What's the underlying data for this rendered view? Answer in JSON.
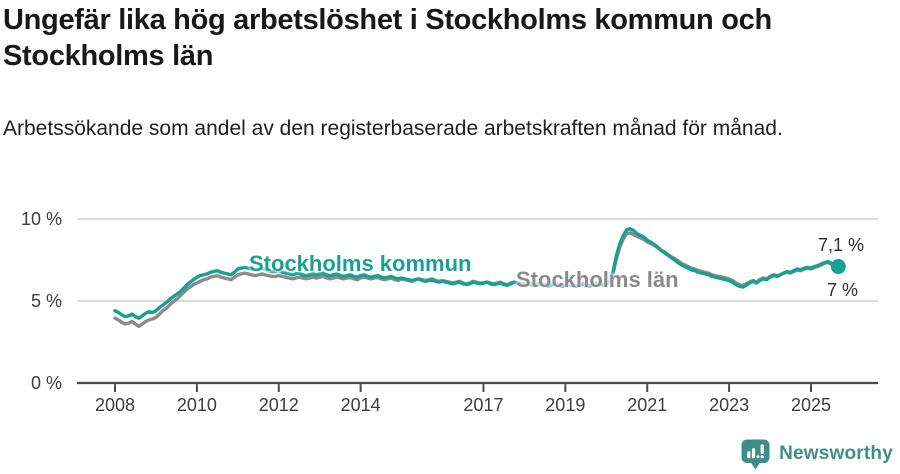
{
  "title": "Ungefär lika hög arbetslöshet i Stockholms kommun och Stockholms län",
  "subtitle": "Arbetssökande som andel av den registerbaserade arbetskraften månad för månad.",
  "footer": {
    "brand": "Newsworthy",
    "icon": "newsworthy-speech-bubble-bar-chart-icon"
  },
  "colors": {
    "kommun": "#18A094",
    "lan": "#8B8B8B",
    "grid": "#DBDBDB",
    "axis": "#4C4C4C",
    "title_text": "#181818",
    "tick_text": "#3D3D3D",
    "logo": "#3E8D8B",
    "background": "#FFFFFF"
  },
  "chart_data": {
    "type": "line",
    "title": "Ungefär lika hög arbetslöshet i Stockholms kommun och Stockholms län",
    "subtitle": "Arbetssökande som andel av den registerbaserade arbetskraften månad för månad.",
    "unit": "%",
    "frequency": "monthly",
    "start": "2008-01",
    "end": "2025-09",
    "ylim": [
      0,
      10
    ],
    "grid": "horizontal-only",
    "legend_position": "inline-labels",
    "yticks": [
      {
        "value": 0,
        "label": "0 %"
      },
      {
        "value": 5,
        "label": "5 %"
      },
      {
        "value": 10,
        "label": "10 %"
      }
    ],
    "xticks": [
      2008,
      2010,
      2012,
      2014,
      2017,
      2019,
      2021,
      2023,
      2025
    ],
    "series": [
      {
        "name": "Stockholms kommun",
        "color": "#18A094",
        "end_label": "7,1 %",
        "end_value": 7.1,
        "end_marker": "dot",
        "values": [
          4.4,
          4.3,
          4.15,
          4.05,
          4.1,
          4.2,
          4.05,
          3.95,
          4.1,
          4.25,
          4.35,
          4.3,
          4.4,
          4.6,
          4.75,
          4.9,
          5.1,
          5.25,
          5.4,
          5.55,
          5.75,
          5.95,
          6.15,
          6.3,
          6.45,
          6.55,
          6.6,
          6.65,
          6.75,
          6.8,
          6.85,
          6.75,
          6.7,
          6.65,
          6.6,
          6.75,
          6.95,
          7.0,
          7.05,
          7.0,
          6.95,
          6.9,
          6.95,
          7.0,
          6.95,
          6.85,
          6.8,
          6.8,
          6.85,
          6.75,
          6.7,
          6.65,
          6.6,
          6.65,
          6.7,
          6.6,
          6.55,
          6.6,
          6.65,
          6.6,
          6.65,
          6.7,
          6.6,
          6.55,
          6.6,
          6.65,
          6.55,
          6.5,
          6.55,
          6.6,
          6.5,
          6.45,
          6.55,
          6.6,
          6.5,
          6.45,
          6.5,
          6.55,
          6.45,
          6.4,
          6.45,
          6.5,
          6.4,
          6.35,
          6.4,
          6.35,
          6.3,
          6.25,
          6.3,
          6.35,
          6.25,
          6.2,
          6.25,
          6.3,
          6.2,
          6.15,
          6.2,
          6.15,
          6.1,
          6.05,
          6.1,
          6.15,
          6.05,
          6.0,
          6.05,
          6.15,
          6.1,
          6.05,
          6.1,
          6.15,
          6.05,
          6.0,
          6.05,
          6.1,
          6.0,
          5.95,
          6.05,
          6.15,
          6.1,
          6.0,
          6.05,
          6.1,
          6.0,
          5.95,
          6.0,
          6.05,
          5.95,
          5.9,
          6.0,
          6.05,
          5.95,
          5.9,
          5.95,
          6.0,
          5.95,
          5.9,
          5.95,
          6.05,
          6.0,
          5.95,
          6.0,
          6.1,
          6.05,
          6.0,
          6.1,
          6.2,
          6.8,
          7.8,
          8.5,
          9.0,
          9.35,
          9.4,
          9.3,
          9.1,
          9.0,
          8.9,
          8.7,
          8.6,
          8.45,
          8.3,
          8.1,
          7.95,
          7.8,
          7.65,
          7.5,
          7.35,
          7.2,
          7.1,
          7.0,
          6.9,
          6.85,
          6.75,
          6.7,
          6.65,
          6.6,
          6.5,
          6.45,
          6.4,
          6.35,
          6.3,
          6.25,
          6.15,
          6.0,
          5.9,
          5.85,
          5.95,
          6.1,
          6.2,
          6.1,
          6.25,
          6.35,
          6.3,
          6.45,
          6.55,
          6.5,
          6.6,
          6.7,
          6.8,
          6.75,
          6.85,
          6.95,
          6.9,
          7.0,
          7.05,
          7.0,
          7.1,
          7.15,
          7.25,
          7.35,
          7.4,
          7.3,
          7.2,
          7.1
        ]
      },
      {
        "name": "Stockholms län",
        "color": "#8B8B8B",
        "end_label": "7 %",
        "end_value": 7.0,
        "end_marker": "none",
        "values": [
          3.95,
          3.85,
          3.7,
          3.6,
          3.65,
          3.75,
          3.6,
          3.45,
          3.6,
          3.75,
          3.85,
          3.9,
          4.0,
          4.2,
          4.4,
          4.55,
          4.75,
          4.95,
          5.1,
          5.3,
          5.5,
          5.7,
          5.85,
          6.0,
          6.1,
          6.2,
          6.3,
          6.35,
          6.45,
          6.5,
          6.55,
          6.45,
          6.4,
          6.35,
          6.3,
          6.45,
          6.6,
          6.65,
          6.7,
          6.65,
          6.6,
          6.55,
          6.6,
          6.65,
          6.6,
          6.55,
          6.5,
          6.5,
          6.55,
          6.5,
          6.45,
          6.4,
          6.35,
          6.4,
          6.45,
          6.4,
          6.35,
          6.4,
          6.45,
          6.4,
          6.45,
          6.5,
          6.4,
          6.35,
          6.4,
          6.45,
          6.4,
          6.35,
          6.4,
          6.45,
          6.35,
          6.3,
          6.4,
          6.45,
          6.4,
          6.35,
          6.4,
          6.45,
          6.35,
          6.3,
          6.35,
          6.4,
          6.3,
          6.25,
          6.35,
          6.3,
          6.25,
          6.2,
          6.3,
          6.35,
          6.3,
          6.25,
          6.3,
          6.35,
          6.25,
          6.2,
          6.25,
          6.2,
          6.15,
          6.1,
          6.15,
          6.2,
          6.1,
          6.05,
          6.1,
          6.2,
          6.15,
          6.1,
          6.1,
          6.15,
          6.1,
          6.05,
          6.1,
          6.15,
          6.05,
          6.0,
          6.1,
          6.15,
          6.1,
          6.05,
          6.05,
          6.1,
          6.05,
          6.0,
          6.05,
          6.1,
          6.0,
          5.95,
          6.0,
          6.05,
          6.0,
          5.95,
          5.95,
          6.0,
          5.95,
          5.9,
          5.95,
          6.0,
          5.95,
          5.9,
          5.95,
          6.05,
          6.0,
          6.0,
          6.05,
          6.15,
          6.7,
          7.6,
          8.3,
          8.8,
          9.1,
          9.15,
          9.05,
          8.95,
          8.85,
          8.75,
          8.6,
          8.5,
          8.4,
          8.25,
          8.1,
          8.0,
          7.85,
          7.7,
          7.6,
          7.45,
          7.3,
          7.2,
          7.1,
          7.0,
          6.95,
          6.85,
          6.8,
          6.75,
          6.7,
          6.6,
          6.55,
          6.5,
          6.45,
          6.4,
          6.35,
          6.25,
          6.1,
          6.0,
          5.95,
          6.05,
          6.15,
          6.25,
          6.15,
          6.3,
          6.4,
          6.35,
          6.5,
          6.6,
          6.55,
          6.6,
          6.7,
          6.75,
          6.7,
          6.8,
          6.9,
          6.85,
          6.95,
          7.0,
          6.95,
          7.05,
          7.1,
          7.2,
          7.3,
          7.35,
          7.25,
          7.15,
          7.0
        ]
      }
    ]
  }
}
